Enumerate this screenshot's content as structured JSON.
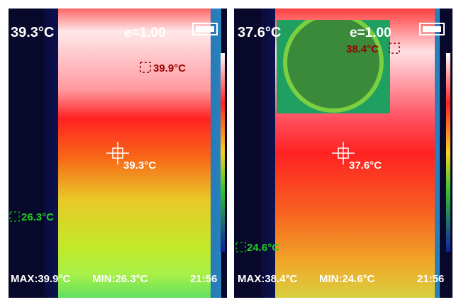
{
  "panels": [
    {
      "temperature": "39.3°C",
      "emissivity": "e=1.00",
      "hot_spot": "39.9°C",
      "center": "39.3°C",
      "cold_spot": "26.3°C",
      "max": "MAX:39.9°C",
      "min": "MIN:26.3°C",
      "time": "21:56"
    },
    {
      "temperature": "37.6°C",
      "emissivity": "e=1.00",
      "hot_spot": "38.4°C",
      "center": "37.6°C",
      "cold_spot": "24.6°C",
      "max": "MAX:38.4°C",
      "min": "MIN:24.6°C",
      "time": "21:56"
    }
  ]
}
